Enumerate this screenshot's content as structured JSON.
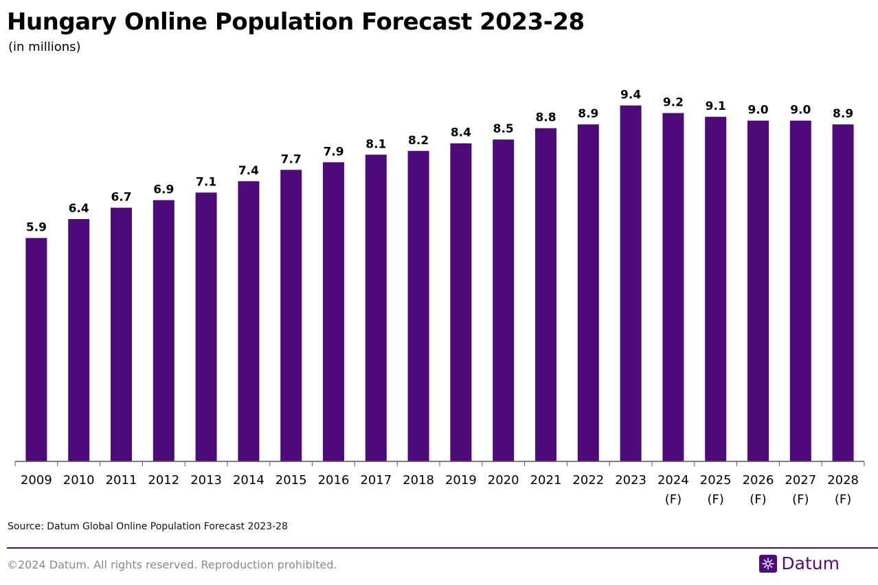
{
  "colors": {
    "bar": "#4f0a7a",
    "accent": "#4f0a82",
    "divider": "#4f0a82",
    "axis": "#555555"
  },
  "chart_data": {
    "type": "bar",
    "title": "Hungary Online Population Forecast 2023-28",
    "subtitle": "(in millions)",
    "categories": [
      "2009",
      "2010",
      "2011",
      "2012",
      "2013",
      "2014",
      "2015",
      "2016",
      "2017",
      "2018",
      "2019",
      "2020",
      "2021",
      "2022",
      "2023",
      "2024 (F)",
      "2025 (F)",
      "2026 (F)",
      "2027 (F)",
      "2028 (F)"
    ],
    "category_lines": [
      [
        "2009"
      ],
      [
        "2010"
      ],
      [
        "2011"
      ],
      [
        "2012"
      ],
      [
        "2013"
      ],
      [
        "2014"
      ],
      [
        "2015"
      ],
      [
        "2016"
      ],
      [
        "2017"
      ],
      [
        "2018"
      ],
      [
        "2019"
      ],
      [
        "2020"
      ],
      [
        "2021"
      ],
      [
        "2022"
      ],
      [
        "2023"
      ],
      [
        "2024",
        "(F)"
      ],
      [
        "2025",
        "(F)"
      ],
      [
        "2026",
        "(F)"
      ],
      [
        "2027",
        "(F)"
      ],
      [
        "2028",
        "(F)"
      ]
    ],
    "values": [
      5.9,
      6.4,
      6.7,
      6.9,
      7.1,
      7.4,
      7.7,
      7.9,
      8.1,
      8.2,
      8.4,
      8.5,
      8.8,
      8.9,
      9.4,
      9.2,
      9.1,
      9.0,
      9.0,
      8.9
    ],
    "value_labels": [
      "5.9",
      "6.4",
      "6.7",
      "6.9",
      "7.1",
      "7.4",
      "7.7",
      "7.9",
      "8.1",
      "8.2",
      "8.4",
      "8.5",
      "8.8",
      "8.9",
      "9.4",
      "9.2",
      "9.1",
      "9.0",
      "9.0",
      "8.9"
    ],
    "ylim": [
      0,
      9.4
    ],
    "grid": false,
    "legend": "none"
  },
  "footer": {
    "source": "Source: Datum Global Online Population Forecast 2023-28",
    "copyright": "©2024 Datum. All rights reserved. Reproduction prohibited.",
    "brand": "Datum"
  }
}
